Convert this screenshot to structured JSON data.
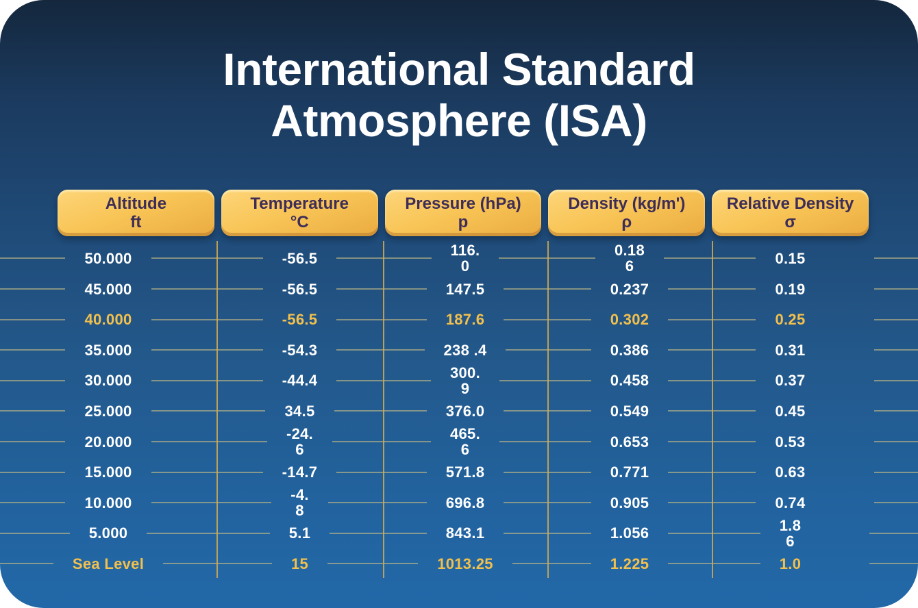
{
  "title": {
    "line1": "International Standard",
    "line2": "Atmosphere (ISA)"
  },
  "columns": [
    {
      "label": "Altitude",
      "unit": "ft"
    },
    {
      "label": "Temperature",
      "unit": "°C"
    },
    {
      "label": "Pressure (hPa)",
      "unit": "p"
    },
    {
      "label": "Density (kg/m')",
      "unit": "ρ"
    },
    {
      "label": "Relative Density",
      "unit": "σ"
    }
  ],
  "table": {
    "rows": [
      {
        "highlight": false,
        "cells": [
          "50.000",
          "-56.5",
          "116.\n0",
          "0.18\n6",
          "0.15"
        ]
      },
      {
        "highlight": false,
        "cells": [
          "45.000",
          "-56.5",
          "147.5",
          "0.237",
          "0.19"
        ]
      },
      {
        "highlight": true,
        "cells": [
          "40.000",
          "-56.5",
          "187.6",
          "0.302",
          "0.25"
        ]
      },
      {
        "highlight": false,
        "cells": [
          "35.000",
          "-54.3",
          "238 .4",
          "0.386",
          "0.31"
        ]
      },
      {
        "highlight": false,
        "cells": [
          "30.000",
          "-44.4",
          "300.\n9",
          "0.458",
          "0.37"
        ]
      },
      {
        "highlight": false,
        "cells": [
          "25.000",
          "34.5",
          "376.0",
          "0.549",
          "0.45"
        ]
      },
      {
        "highlight": false,
        "cells": [
          "20.000",
          "-24.\n6",
          "465.\n6",
          "0.653",
          "0.53"
        ]
      },
      {
        "highlight": false,
        "cells": [
          "15.000",
          "-14.7",
          "571.8",
          "0.771",
          "0.63"
        ]
      },
      {
        "highlight": false,
        "cells": [
          "10.000",
          "-4.\n8",
          "696.8",
          "0.905",
          "0.74"
        ]
      },
      {
        "highlight": false,
        "cells": [
          "5.000",
          "5.1",
          "843.1",
          "1.056",
          "1.8\n6"
        ]
      },
      {
        "highlight": true,
        "cells": [
          "Sea Level",
          "15",
          "1013.25",
          "1.225",
          "1.0"
        ]
      }
    ]
  },
  "colors": {
    "card_gradient_top": "#14273d",
    "card_gradient_bottom": "#2268a8",
    "pill_gold": "#f8c455",
    "pill_text": "#3e2d57",
    "highlight_text": "#f2c04d",
    "grid_horizontal": "#c4ba84",
    "grid_vertical": "#d8ac4c",
    "body_text": "#ffffff"
  },
  "chart_data": {
    "type": "table",
    "title": "International Standard Atmosphere (ISA)",
    "columns": [
      "Altitude ft",
      "Temperature °C",
      "Pressure (hPa) p",
      "Density (kg/m') ρ",
      "Relative Density σ"
    ],
    "rows": [
      [
        "50.000",
        "-56.5",
        "116.0",
        "0.186",
        "0.15"
      ],
      [
        "45.000",
        "-56.5",
        "147.5",
        "0.237",
        "0.19"
      ],
      [
        "40.000",
        "-56.5",
        "187.6",
        "0.302",
        "0.25"
      ],
      [
        "35.000",
        "-54.3",
        "238.4",
        "0.386",
        "0.31"
      ],
      [
        "30.000",
        "-44.4",
        "300.9",
        "0.458",
        "0.37"
      ],
      [
        "25.000",
        "34.5",
        "376.0",
        "0.549",
        "0.45"
      ],
      [
        "20.000",
        "-24.6",
        "465.6",
        "0.653",
        "0.53"
      ],
      [
        "15.000",
        "-14.7",
        "571.8",
        "0.771",
        "0.63"
      ],
      [
        "10.000",
        "-4.8",
        "696.8",
        "0.905",
        "0.74"
      ],
      [
        "5.000",
        "5.1",
        "843.1",
        "1.056",
        "1.86"
      ],
      [
        "Sea Level",
        "15",
        "1013.25",
        "1.225",
        "1.0"
      ]
    ],
    "highlighted_rows": [
      "40.000",
      "Sea Level"
    ]
  }
}
